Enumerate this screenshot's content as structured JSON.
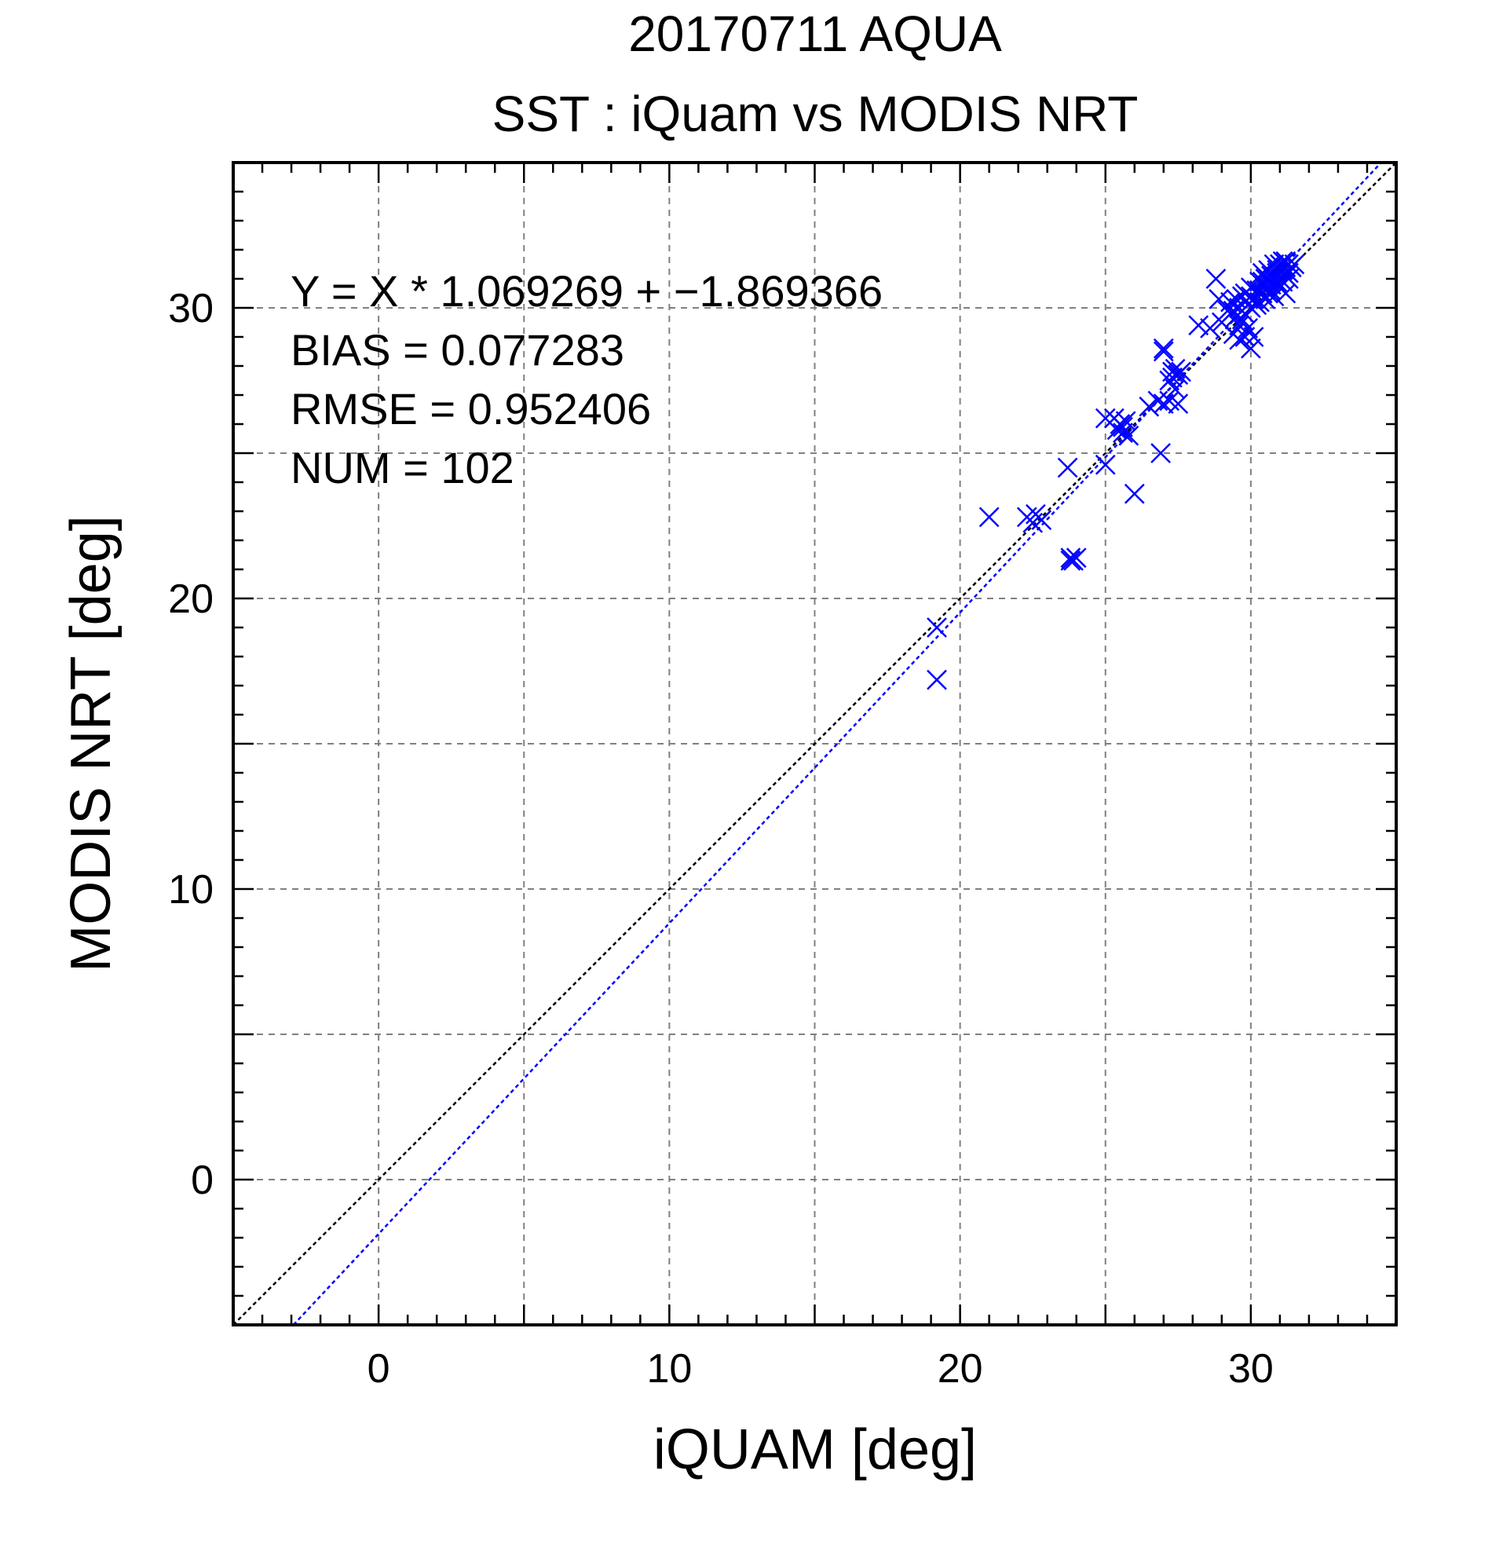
{
  "chart_data": {
    "type": "scatter",
    "title": "20170711 AQUA",
    "subtitle": "SST : iQuam vs MODIS NRT",
    "xlabel": "iQUAM [deg]",
    "ylabel": "MODIS NRT [deg]",
    "xlim": [
      -5,
      35
    ],
    "ylim": [
      -5,
      35
    ],
    "xticks": [
      0,
      10,
      20,
      30
    ],
    "yticks": [
      0,
      10,
      20,
      30
    ],
    "minor_tick_step": 1,
    "grid_step": 5,
    "grid": true,
    "stats": {
      "equation": "Y = X * 1.069269 + −1.869366",
      "bias": "BIAS = 0.077283",
      "rmse": "RMSE = 0.952406",
      "num": "NUM = 102"
    },
    "fit": {
      "slope": 1.069269,
      "intercept": -1.869366
    },
    "colors": {
      "points": "#0000ff",
      "fit_line": "#0000ff",
      "identity_line": "#000000",
      "grid": "#808080"
    },
    "points": [
      [
        19.2,
        19.0
      ],
      [
        19.2,
        17.2
      ],
      [
        21.0,
        22.8
      ],
      [
        22.3,
        22.8
      ],
      [
        22.5,
        22.6
      ],
      [
        22.6,
        22.9
      ],
      [
        22.8,
        22.7
      ],
      [
        23.7,
        24.5
      ],
      [
        23.8,
        21.4
      ],
      [
        23.9,
        21.3
      ],
      [
        24.0,
        21.4
      ],
      [
        23.8,
        21.3
      ],
      [
        25.0,
        24.6
      ],
      [
        25.0,
        26.2
      ],
      [
        25.3,
        26.2
      ],
      [
        25.4,
        25.8
      ],
      [
        25.5,
        26.0
      ],
      [
        25.6,
        25.9
      ],
      [
        25.7,
        26.1
      ],
      [
        25.8,
        25.6
      ],
      [
        26.0,
        23.6
      ],
      [
        26.5,
        26.6
      ],
      [
        26.8,
        26.8
      ],
      [
        26.9,
        25.0
      ],
      [
        27.0,
        26.7
      ],
      [
        27.0,
        28.5
      ],
      [
        27.0,
        28.6
      ],
      [
        27.2,
        27.5
      ],
      [
        27.2,
        26.8
      ],
      [
        27.3,
        27.6
      ],
      [
        27.4,
        27.9
      ],
      [
        27.4,
        27.2
      ],
      [
        27.5,
        27.7
      ],
      [
        27.5,
        26.7
      ],
      [
        27.6,
        27.8
      ],
      [
        28.2,
        29.4
      ],
      [
        28.6,
        29.3
      ],
      [
        28.8,
        31.0
      ],
      [
        28.9,
        30.3
      ],
      [
        29.0,
        29.5
      ],
      [
        29.2,
        29.9
      ],
      [
        29.3,
        30.2
      ],
      [
        29.4,
        29.1
      ],
      [
        29.5,
        29.7
      ],
      [
        29.6,
        30.0
      ],
      [
        29.6,
        28.9
      ],
      [
        29.7,
        29.6
      ],
      [
        29.7,
        30.4
      ],
      [
        29.8,
        29.0
      ],
      [
        29.8,
        30.5
      ],
      [
        29.9,
        29.3
      ],
      [
        30.0,
        28.6
      ],
      [
        30.0,
        30.0
      ],
      [
        30.0,
        30.7
      ],
      [
        30.1,
        30.3
      ],
      [
        30.1,
        29.0
      ],
      [
        30.2,
        30.1
      ],
      [
        30.2,
        30.6
      ],
      [
        30.3,
        30.9
      ],
      [
        30.3,
        30.2
      ],
      [
        30.4,
        30.5
      ],
      [
        30.4,
        31.2
      ],
      [
        30.5,
        30.8
      ],
      [
        30.5,
        30.3
      ],
      [
        30.6,
        31.0
      ],
      [
        30.6,
        31.3
      ],
      [
        30.7,
        30.6
      ],
      [
        30.7,
        31.1
      ],
      [
        30.8,
        30.4
      ],
      [
        30.8,
        31.5
      ],
      [
        30.9,
        30.9
      ],
      [
        30.9,
        31.2
      ],
      [
        31.0,
        31.0
      ],
      [
        31.0,
        31.5
      ],
      [
        31.0,
        30.7
      ],
      [
        31.1,
        31.3
      ],
      [
        31.1,
        31.6
      ],
      [
        31.2,
        31.1
      ],
      [
        31.2,
        30.5
      ],
      [
        31.2,
        31.4
      ],
      [
        31.3,
        31.5
      ],
      [
        31.3,
        31.2
      ],
      [
        31.4,
        31.4
      ],
      [
        31.5,
        31.5
      ],
      [
        31.1,
        30.9
      ],
      [
        30.7,
        30.8
      ],
      [
        30.3,
        30.6
      ],
      [
        29.5,
        30.3
      ],
      [
        29.9,
        30.1
      ],
      [
        30.5,
        31.0
      ],
      [
        29.6,
        29.4
      ],
      [
        31.2,
        31.6
      ],
      [
        30.9,
        31.3
      ],
      [
        30.6,
        30.5
      ],
      [
        29.4,
        29.9
      ],
      [
        30.0,
        30.4
      ],
      [
        25.6,
        25.7
      ],
      [
        27.3,
        27.8
      ],
      [
        29.8,
        29.8
      ],
      [
        30.4,
        30.9
      ],
      [
        31.3,
        31.0
      ],
      [
        30.8,
        31.0
      ]
    ]
  }
}
